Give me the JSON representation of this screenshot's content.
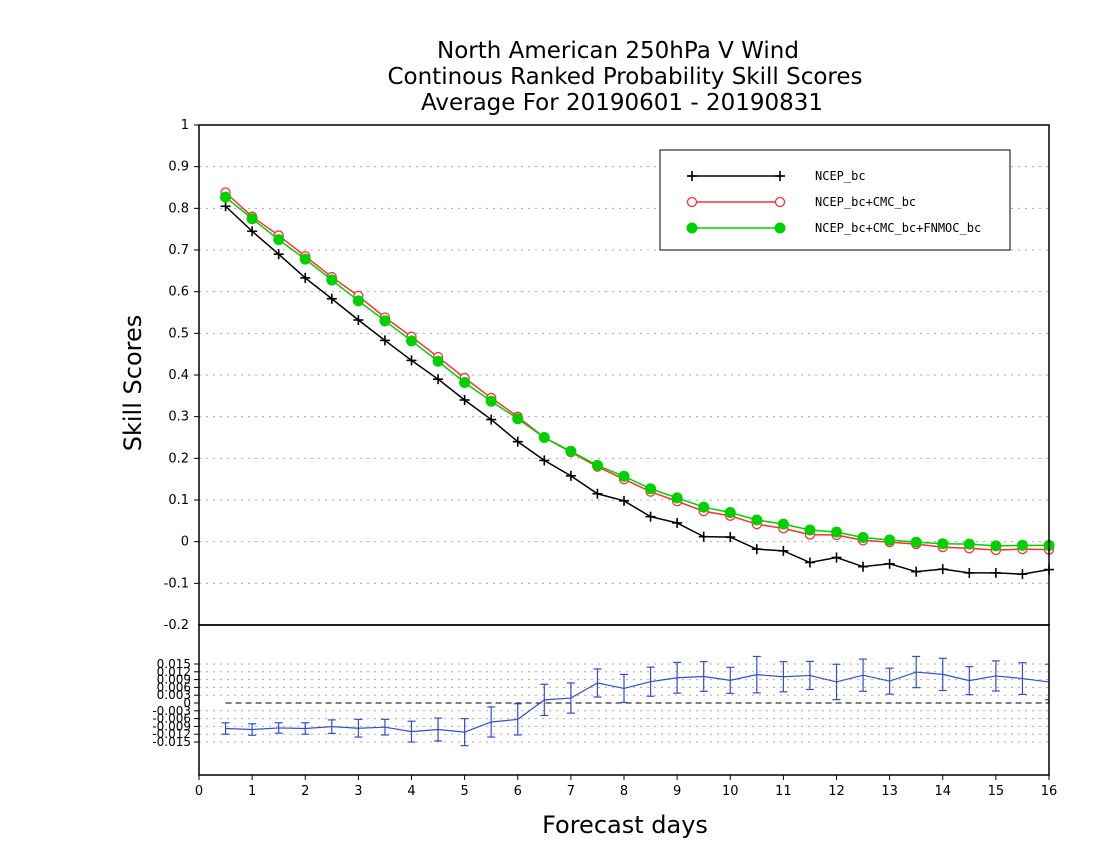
{
  "title_lines": [
    "North American 250hPa V Wind",
    "Continous Ranked Probability Skill Scores",
    "Average For 20190601 - 20190831"
  ],
  "chart_data": [
    {
      "type": "line",
      "ylabel": "Skill Scores",
      "ylim": [
        -0.2,
        1
      ],
      "yticks": [
        -0.1,
        0,
        0.1,
        0.2,
        0.3,
        0.4,
        0.5,
        0.6,
        0.7,
        0.8,
        0.9,
        1
      ],
      "ytick_labels": [
        "-0.1",
        "0",
        "0.1",
        "0.2",
        "0.3",
        "0.4",
        "0.5",
        "0.6",
        "0.7",
        "0.8",
        "0.9",
        "1"
      ],
      "grid": true,
      "legend_position": "top-right",
      "x": [
        0.5,
        1,
        1.5,
        2,
        2.5,
        3,
        3.5,
        4,
        4.5,
        5,
        5.5,
        6,
        6.5,
        7,
        7.5,
        8,
        8.5,
        9,
        9.5,
        10,
        10.5,
        11,
        11.5,
        12,
        12.5,
        13,
        13.5,
        14,
        14.5,
        15,
        15.5,
        16
      ],
      "series": [
        {
          "name": "NCEP_bc",
          "color": "#000000",
          "marker": "plus",
          "values": [
            0.805,
            0.745,
            0.69,
            0.633,
            0.583,
            0.532,
            0.483,
            0.435,
            0.39,
            0.34,
            0.293,
            0.24,
            0.195,
            0.158,
            0.115,
            0.098,
            0.06,
            0.045,
            0.012,
            0.011,
            -0.018,
            -0.022,
            -0.05,
            -0.038,
            -0.06,
            -0.053,
            -0.072,
            -0.066,
            -0.075,
            -0.075,
            -0.078,
            -0.067
          ]
        },
        {
          "name": "NCEP_bc+CMC_bc",
          "color": "#ff3030",
          "marker": "open-circle",
          "values": [
            0.838,
            0.78,
            0.735,
            0.685,
            0.635,
            0.59,
            0.538,
            0.492,
            0.443,
            0.393,
            0.345,
            0.3,
            0.25,
            0.215,
            0.18,
            0.15,
            0.12,
            0.097,
            0.073,
            0.062,
            0.042,
            0.032,
            0.017,
            0.016,
            0.003,
            -0.001,
            -0.006,
            -0.013,
            -0.016,
            -0.02,
            -0.018,
            -0.019
          ]
        },
        {
          "name": "NCEP_bc+CMC_bc+FNMOC_bc",
          "color": "#00d000",
          "marker": "filled-circle",
          "values": [
            0.827,
            0.775,
            0.725,
            0.678,
            0.628,
            0.578,
            0.53,
            0.482,
            0.433,
            0.382,
            0.337,
            0.295,
            0.25,
            0.217,
            0.183,
            0.157,
            0.127,
            0.105,
            0.083,
            0.07,
            0.052,
            0.042,
            0.028,
            0.023,
            0.01,
            0.004,
            -0.001,
            -0.005,
            -0.006,
            -0.01,
            -0.009,
            -0.009
          ]
        }
      ]
    },
    {
      "type": "line",
      "xlabel": "Forecast days",
      "xlim": [
        0,
        16
      ],
      "xticks": [
        0,
        1,
        2,
        3,
        4,
        5,
        6,
        7,
        8,
        9,
        10,
        11,
        12,
        13,
        14,
        15,
        16
      ],
      "xtick_labels": [
        "0",
        "1",
        "2",
        "3",
        "4",
        "5",
        "6",
        "7",
        "8",
        "9",
        "10",
        "11",
        "12",
        "13",
        "14",
        "15",
        "16"
      ],
      "ylim": [
        -0.0165,
        0.0165
      ],
      "yticks": [
        -0.015,
        -0.012,
        -0.009,
        -0.006,
        -0.003,
        0,
        0.003,
        0.006,
        0.009,
        0.012,
        0.015
      ],
      "ytick_labels": [
        "-0.015",
        "-0.012",
        "-0.009",
        "-0.006",
        "-0.003",
        "0",
        "0.003",
        "0.006",
        "0.009",
        "0.012",
        "0.015"
      ],
      "top_label": "-0.2",
      "grid": true,
      "zero_line": "dashed",
      "color": "#3050d0",
      "x": [
        0.5,
        1,
        1.5,
        2,
        2.5,
        3,
        3.5,
        4,
        4.5,
        5,
        5.5,
        6,
        6.5,
        7,
        7.5,
        8,
        8.5,
        9,
        9.5,
        10,
        10.5,
        11,
        11.5,
        12,
        12.5,
        13,
        13.5,
        14,
        14.5,
        15,
        15.5,
        16
      ],
      "values": [
        -0.0098,
        -0.0102,
        -0.0096,
        -0.0098,
        -0.0091,
        -0.0097,
        -0.0093,
        -0.011,
        -0.0102,
        -0.0112,
        -0.0073,
        -0.0063,
        0.0012,
        0.0019,
        0.0077,
        0.0056,
        0.0082,
        0.0097,
        0.0102,
        0.0087,
        0.0109,
        0.0101,
        0.0106,
        0.0081,
        0.0107,
        0.0084,
        0.0119,
        0.011,
        0.0086,
        0.0104,
        0.0094,
        0.0081
      ],
      "error": [
        0.0022,
        0.0022,
        0.002,
        0.0022,
        0.0026,
        0.0034,
        0.003,
        0.004,
        0.0044,
        0.0052,
        0.0058,
        0.006,
        0.006,
        0.0058,
        0.0054,
        0.0054,
        0.0056,
        0.0059,
        0.0057,
        0.005,
        0.007,
        0.0058,
        0.0054,
        0.0068,
        0.0062,
        0.005,
        0.006,
        0.0062,
        0.0054,
        0.0058,
        0.0061,
        0.0068
      ]
    }
  ]
}
